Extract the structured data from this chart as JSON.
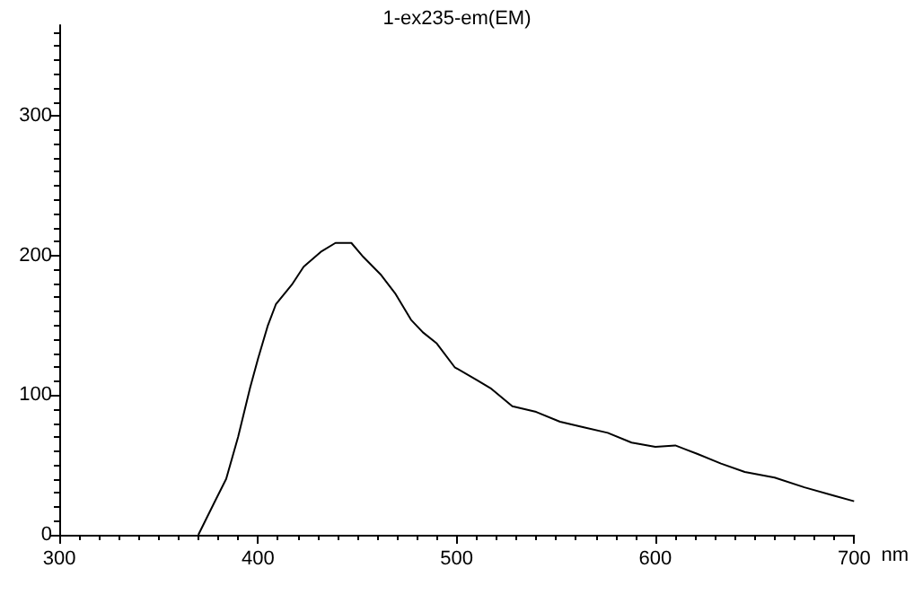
{
  "chart_data": {
    "type": "line",
    "title": "1-ex235-em(EM)",
    "xlabel": "nm",
    "x": [
      370,
      378,
      384,
      390,
      396,
      400,
      405,
      409,
      417,
      423,
      432,
      439,
      447,
      453,
      462,
      469,
      477,
      483,
      490,
      499,
      510,
      517,
      528,
      540,
      552,
      564,
      576,
      588,
      600,
      610,
      621,
      633,
      645,
      660,
      675,
      690,
      700
    ],
    "series": [
      {
        "color": "#000000",
        "values": [
          0,
          23,
          40,
          70,
          105,
          126,
          150,
          165,
          179,
          192,
          203,
          209,
          209,
          199,
          186,
          173,
          154,
          145,
          137,
          120,
          111,
          105,
          92,
          88,
          81,
          77,
          73,
          66,
          63,
          64,
          58,
          51,
          45,
          41,
          34,
          28,
          24
        ]
      }
    ],
    "xlim": [
      300,
      700
    ],
    "xticks": [
      300,
      400,
      500,
      600,
      700
    ],
    "ylim": [
      0,
      365
    ],
    "yticks": [
      0,
      100,
      200,
      300
    ],
    "grid": false,
    "marker": "none",
    "line_style": "solid"
  }
}
